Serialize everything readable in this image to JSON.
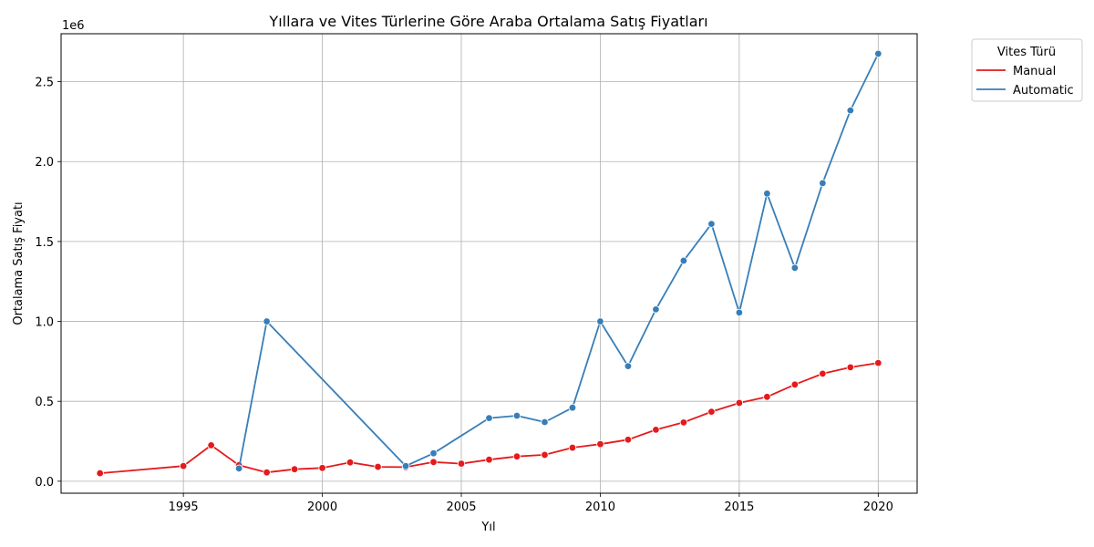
{
  "chart_data": {
    "type": "line",
    "title": "Yıllara ve Vites Türlerine Göre Araba Ortalama Satış Fiyatları",
    "xlabel": "Yıl",
    "ylabel": "Ortalama Satış Fiyatı",
    "offset_label": "1e6",
    "xlim": [
      1990.6,
      2021.4
    ],
    "ylim": [
      -0.075,
      2.8
    ],
    "x_ticks": [
      1995,
      2000,
      2005,
      2010,
      2015,
      2020
    ],
    "y_ticks": [
      0.0,
      0.5,
      1.0,
      1.5,
      2.0,
      2.5
    ],
    "y_tick_labels": [
      "0.0",
      "0.5",
      "1.0",
      "1.5",
      "2.0",
      "2.5"
    ],
    "grid": true,
    "legend": {
      "title": "Vites Türü",
      "placement": "outside-top-right"
    },
    "series": [
      {
        "name": "Manual",
        "color": "#e41a1c",
        "x": [
          1992,
          1995,
          1996,
          1997,
          1998,
          1999,
          2000,
          2001,
          2002,
          2003,
          2004,
          2005,
          2006,
          2007,
          2008,
          2009,
          2010,
          2011,
          2012,
          2013,
          2014,
          2015,
          2016,
          2017,
          2018,
          2019,
          2020
        ],
        "y": [
          0.05,
          0.095,
          0.225,
          0.1,
          0.055,
          0.075,
          0.083,
          0.118,
          0.09,
          0.088,
          0.12,
          0.11,
          0.135,
          0.155,
          0.165,
          0.21,
          0.232,
          0.26,
          0.322,
          0.368,
          0.435,
          0.49,
          0.528,
          0.605,
          0.673,
          0.713,
          0.74
        ]
      },
      {
        "name": "Automatic",
        "color": "#377eb8",
        "x": [
          1997,
          1998,
          2003,
          2004,
          2006,
          2007,
          2008,
          2009,
          2010,
          2011,
          2012,
          2013,
          2014,
          2015,
          2016,
          2017,
          2018,
          2019,
          2020
        ],
        "y": [
          0.08,
          1.0,
          0.095,
          0.175,
          0.395,
          0.41,
          0.37,
          0.46,
          1.0,
          0.72,
          1.075,
          1.38,
          1.61,
          1.055,
          1.8,
          1.335,
          1.865,
          2.32,
          2.675
        ]
      }
    ]
  }
}
